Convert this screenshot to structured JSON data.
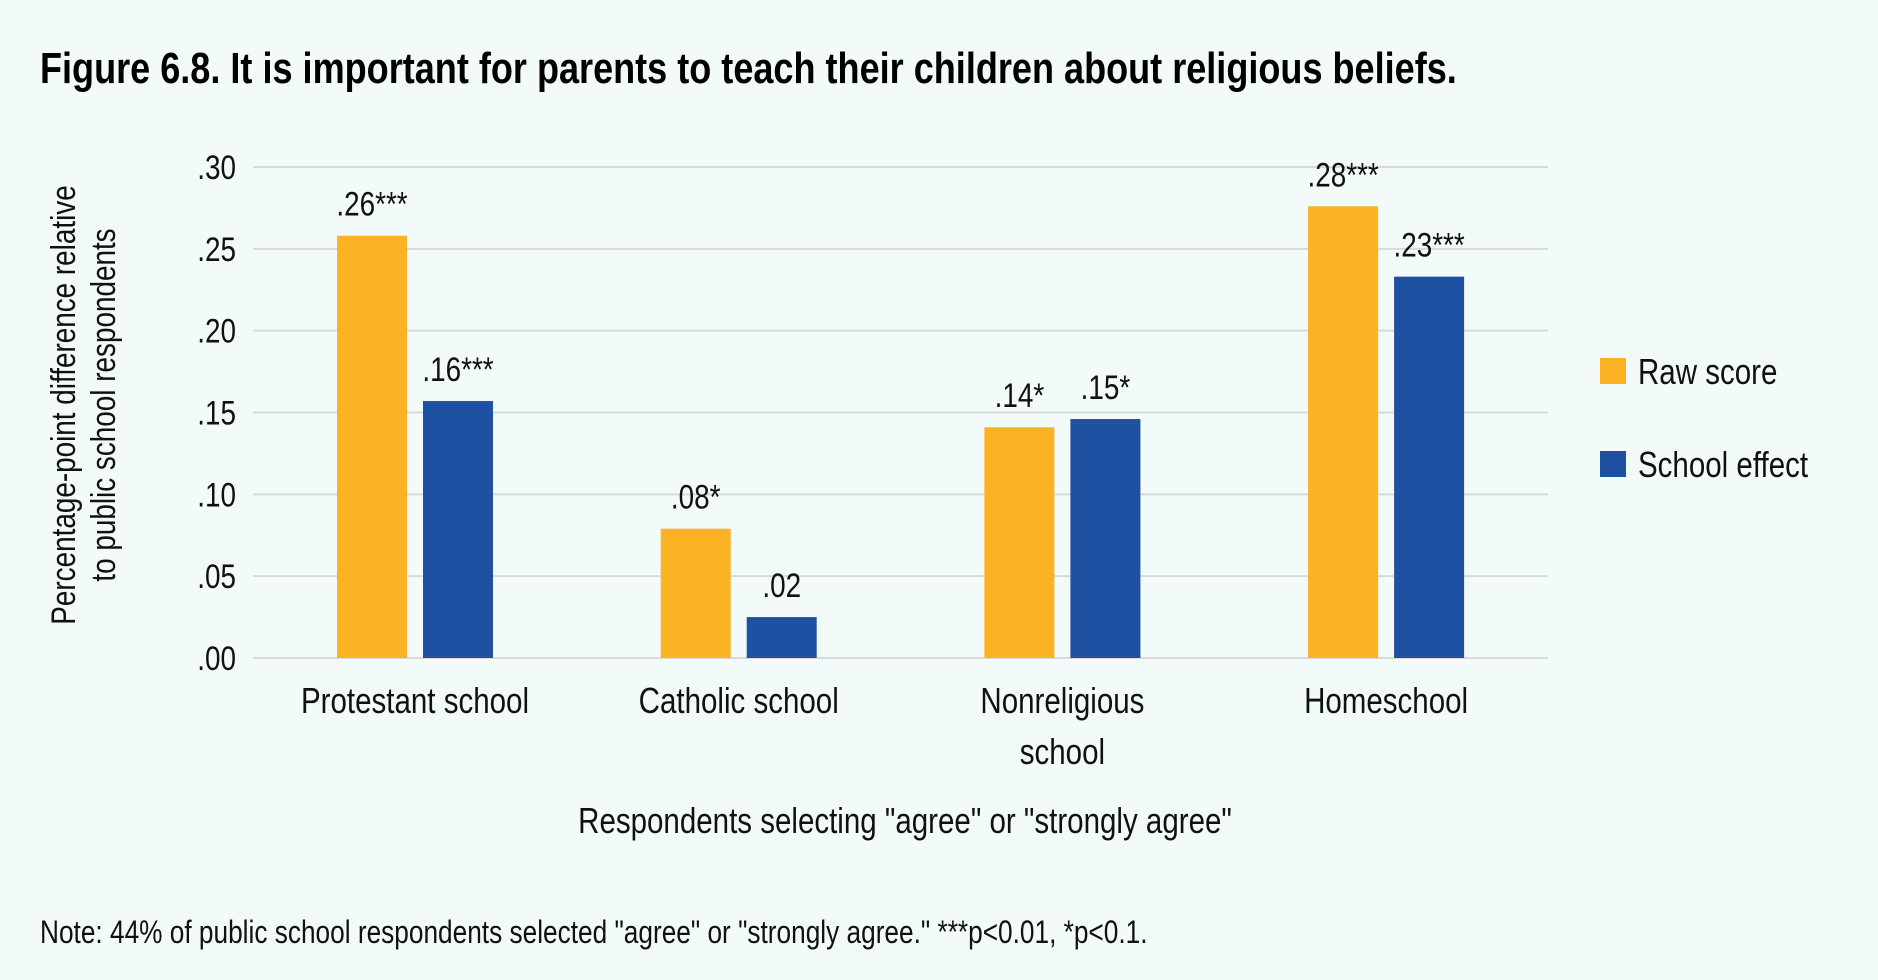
{
  "chart_data": {
    "type": "bar",
    "title": "Figure 6.8. It is important for parents to teach their children about religious beliefs.",
    "xlabel": "Respondents selecting \"agree\" or \"strongly agree\"",
    "ylabel_lines": [
      "Percentage-point difference relative",
      "to public school respondents"
    ],
    "ylim": [
      0,
      0.3
    ],
    "yticks": [
      0,
      0.05,
      0.1,
      0.15,
      0.2,
      0.25,
      0.3
    ],
    "ytick_labels": [
      ".00",
      ".05",
      ".10",
      ".15",
      ".20",
      ".25",
      ".30"
    ],
    "grid": true,
    "legend_position": "right",
    "categories": [
      {
        "label_lines": [
          "Protestant school"
        ]
      },
      {
        "label_lines": [
          "Catholic school"
        ]
      },
      {
        "label_lines": [
          "Nonreligious",
          "school"
        ]
      },
      {
        "label_lines": [
          "Homeschool"
        ]
      }
    ],
    "series": [
      {
        "name": "Raw score",
        "color": "#FBB323",
        "values": [
          0.258,
          0.079,
          0.141,
          0.276
        ],
        "labels": [
          ".26***",
          ".08*",
          ".14*",
          ".28***"
        ]
      },
      {
        "name": "School effect",
        "color": "#1F51A2",
        "values": [
          0.157,
          0.025,
          0.146,
          0.233
        ],
        "labels": [
          ".16***",
          ".02",
          ".15*",
          ".23***"
        ]
      }
    ],
    "note": "Note: 44% of public school respondents selected \"agree\" or \"strongly agree.\" ***p<0.01, *p<0.1."
  }
}
